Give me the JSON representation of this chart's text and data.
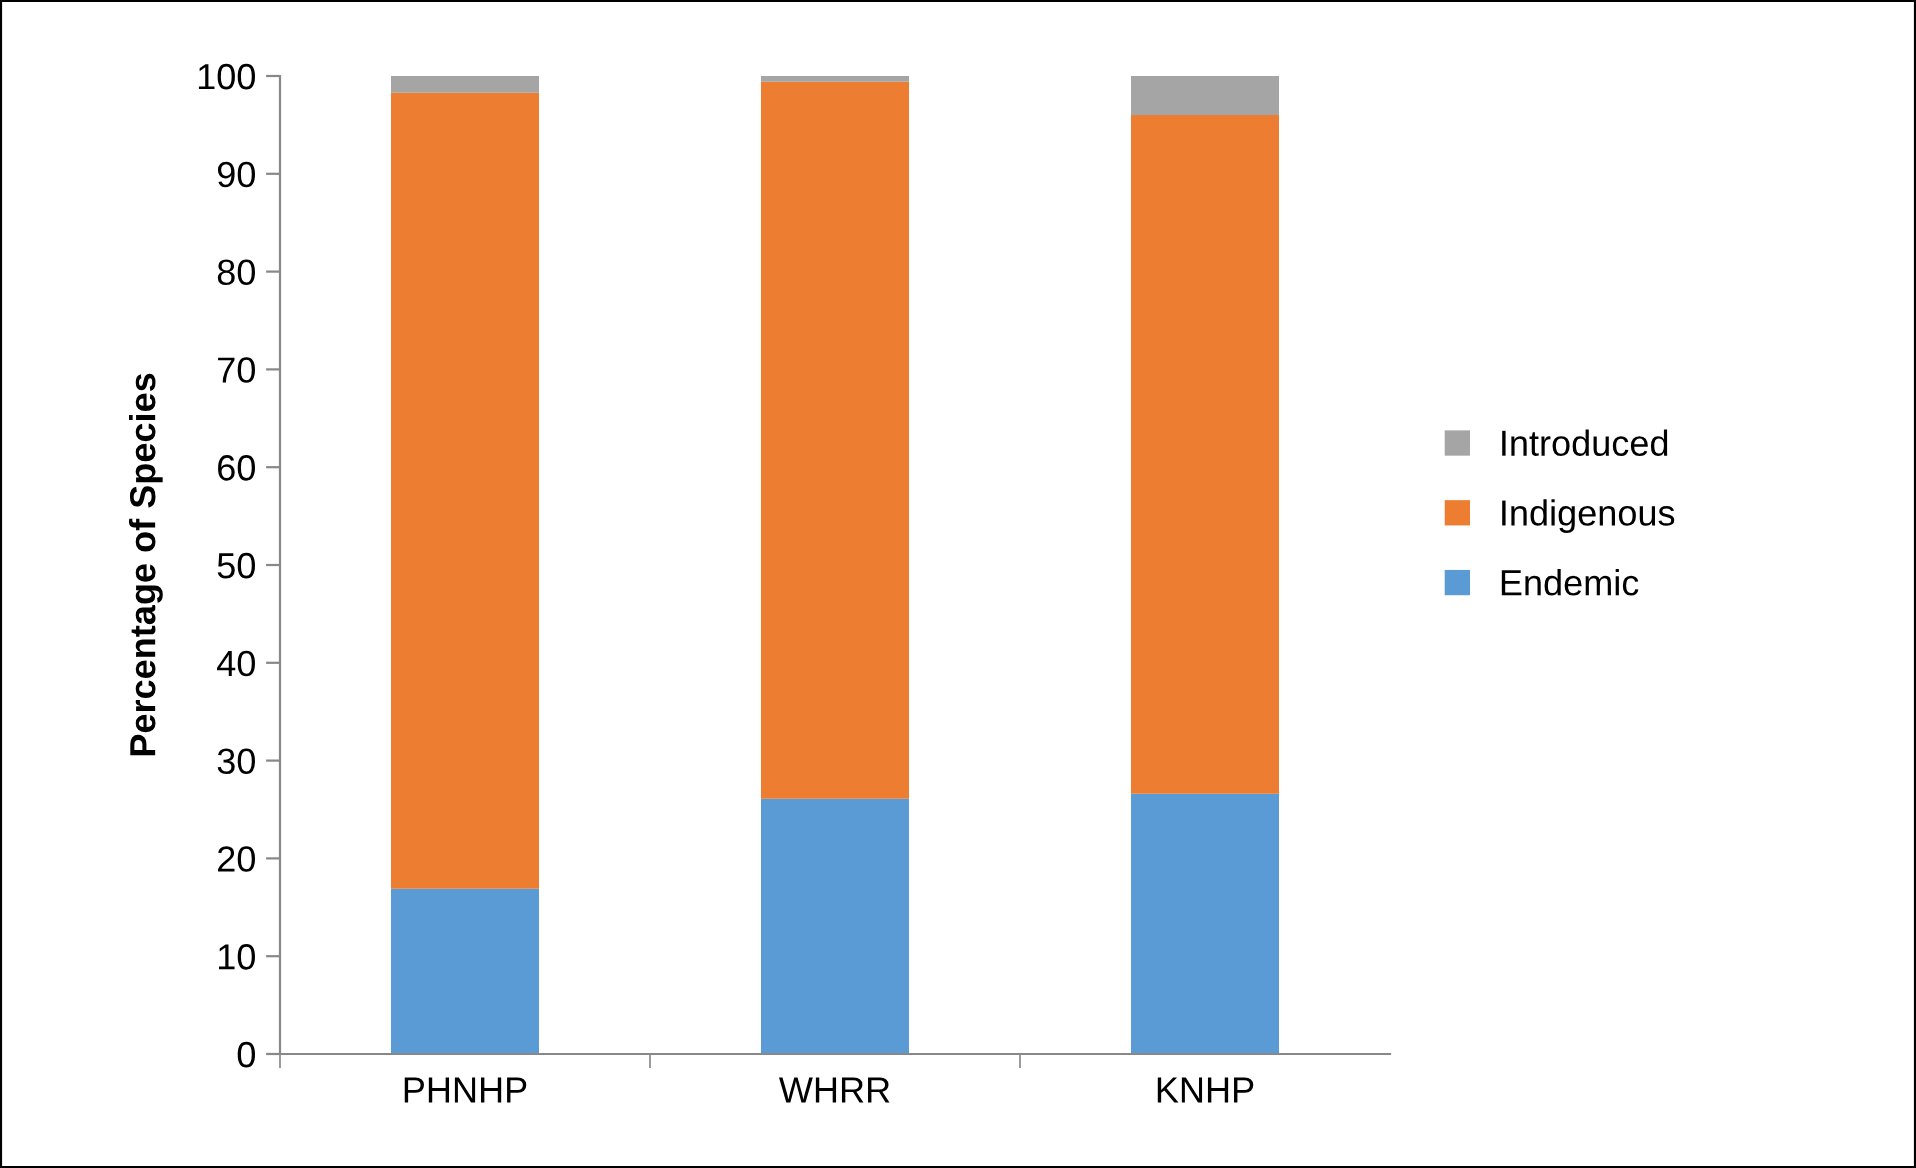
{
  "chart_data": {
    "type": "bar",
    "stacked": true,
    "ylabel": "Percentage of Species",
    "categories": [
      "PHNHP",
      "WHRR",
      "KNHP"
    ],
    "series": [
      {
        "name": "Endemic",
        "color": "#5b9bd5",
        "values": [
          16.9,
          26.1,
          26.6
        ]
      },
      {
        "name": "Indigenous",
        "color": "#ed7d31",
        "values": [
          81.4,
          73.3,
          69.4
        ]
      },
      {
        "name": "Introduced",
        "color": "#a5a5a5",
        "values": [
          1.7,
          0.6,
          4.0
        ]
      }
    ],
    "ylim": [
      0,
      100
    ],
    "yticks": [
      0,
      10,
      20,
      30,
      40,
      50,
      60,
      70,
      80,
      90,
      100
    ],
    "grid": false,
    "legend": "right"
  }
}
